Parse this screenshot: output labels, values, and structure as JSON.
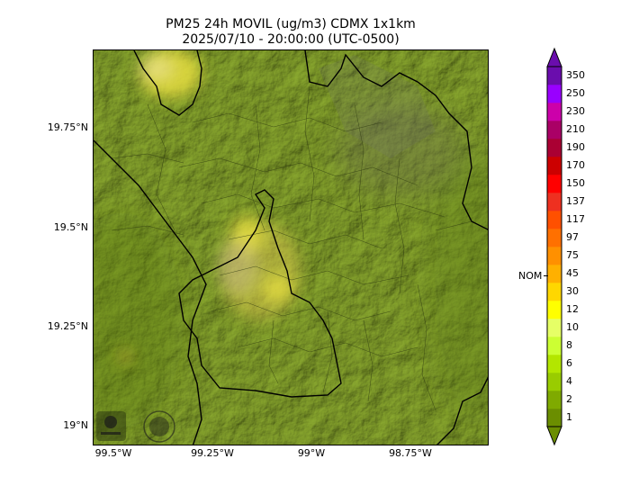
{
  "title": {
    "line1": "PM25 24h MOVIL (ug/m3) CDMX 1x1km",
    "line2": "2025/07/10 - 20:00:00 (UTC-0500)"
  },
  "map": {
    "y_ticks": [
      "19.75°N",
      "19.5°N",
      "19.25°N",
      "19°N"
    ],
    "x_ticks": [
      "99.5°W",
      "99.25°W",
      "99°W",
      "98.75°W"
    ],
    "logos": [
      "sedema-logo-icon",
      "gobierno-seal-icon"
    ]
  },
  "colorbar": {
    "levels": [
      "1",
      "2",
      "4",
      "6",
      "8",
      "10",
      "12",
      "30",
      "45",
      "75",
      "97",
      "117",
      "137",
      "150",
      "170",
      "190",
      "210",
      "230",
      "250",
      "350"
    ],
    "colors": [
      "#6b8e00",
      "#7faa00",
      "#99cc00",
      "#b3e600",
      "#ccff33",
      "#e6ff66",
      "#ffff00",
      "#ffd700",
      "#ffb000",
      "#ff9000",
      "#ff7000",
      "#ff5000",
      "#ee3020",
      "#ff0000",
      "#cc0000",
      "#aa0033",
      "#aa0066",
      "#cc00aa",
      "#9900ff",
      "#6a0dad"
    ],
    "reference_label": "NOM"
  }
}
